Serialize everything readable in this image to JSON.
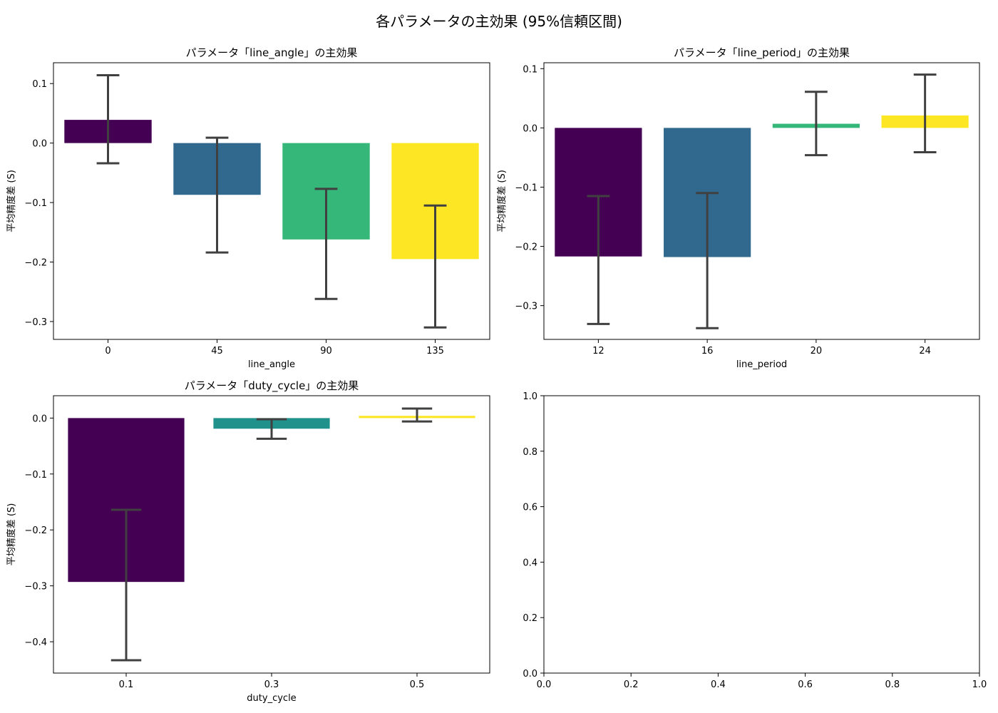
{
  "figure": {
    "title": "各パラメータの主効果 (95%信頼区間)"
  },
  "chart_data": [
    {
      "type": "bar",
      "title": "パラメータ「line_angle」の主効果",
      "xlabel": "line_angle",
      "ylabel": "平均精度差 (S)",
      "categories": [
        "0",
        "45",
        "90",
        "135"
      ],
      "values": [
        0.039,
        -0.087,
        -0.162,
        -0.195
      ],
      "ci_low": [
        -0.034,
        -0.184,
        -0.262,
        -0.31
      ],
      "ci_high": [
        0.114,
        0.009,
        -0.077,
        -0.105
      ],
      "colors": [
        "#440154",
        "#31688e",
        "#35b779",
        "#fde725"
      ],
      "ylim": [
        -0.33,
        0.135
      ],
      "yticks": [
        0.1,
        0.0,
        -0.1,
        -0.2,
        -0.3
      ],
      "ytick_labels": [
        "0.1",
        "0.0",
        "−0.1",
        "−0.2",
        "−0.3"
      ],
      "grid": false,
      "legend": "none"
    },
    {
      "type": "bar",
      "title": "パラメータ「line_period」の主効果",
      "xlabel": "line_period",
      "ylabel": "平均精度差 (S)",
      "categories": [
        "12",
        "16",
        "20",
        "24"
      ],
      "values": [
        -0.217,
        -0.218,
        0.007,
        0.021
      ],
      "ci_low": [
        -0.331,
        -0.338,
        -0.046,
        -0.041
      ],
      "ci_high": [
        -0.115,
        -0.11,
        0.061,
        0.09
      ],
      "colors": [
        "#440154",
        "#31688e",
        "#35b779",
        "#fde725"
      ],
      "ylim": [
        -0.357,
        0.11
      ],
      "yticks": [
        0.1,
        0.0,
        -0.1,
        -0.2,
        -0.3
      ],
      "ytick_labels": [
        "0.1",
        "0.0",
        "−0.1",
        "−0.2",
        "−0.3"
      ],
      "grid": false,
      "legend": "none"
    },
    {
      "type": "bar",
      "title": "パラメータ「duty_cycle」の主効果",
      "xlabel": "duty_cycle",
      "ylabel": "平均精度差 (S)",
      "categories": [
        "0.1",
        "0.3",
        "0.5"
      ],
      "values": [
        -0.293,
        -0.019,
        0.004
      ],
      "ci_low": [
        -0.433,
        -0.037,
        -0.006
      ],
      "ci_high": [
        -0.164,
        -0.002,
        0.017
      ],
      "colors": [
        "#440154",
        "#21918c",
        "#fde725"
      ],
      "ylim": [
        -0.456,
        0.04
      ],
      "yticks": [
        0.0,
        -0.1,
        -0.2,
        -0.3,
        -0.4
      ],
      "ytick_labels": [
        "0.0",
        "−0.1",
        "−0.2",
        "−0.3",
        "−0.4"
      ],
      "grid": false,
      "legend": "none"
    },
    {
      "type": "empty",
      "xlim": [
        0,
        1
      ],
      "ylim": [
        0,
        1
      ],
      "xticks": [
        0.0,
        0.2,
        0.4,
        0.6,
        0.8,
        1.0
      ],
      "xtick_labels": [
        "0.0",
        "0.2",
        "0.4",
        "0.6",
        "0.8",
        "1.0"
      ],
      "yticks": [
        0.0,
        0.2,
        0.4,
        0.6,
        0.8,
        1.0
      ],
      "ytick_labels": [
        "0.0",
        "0.2",
        "0.4",
        "0.6",
        "0.8",
        "1.0"
      ]
    }
  ]
}
